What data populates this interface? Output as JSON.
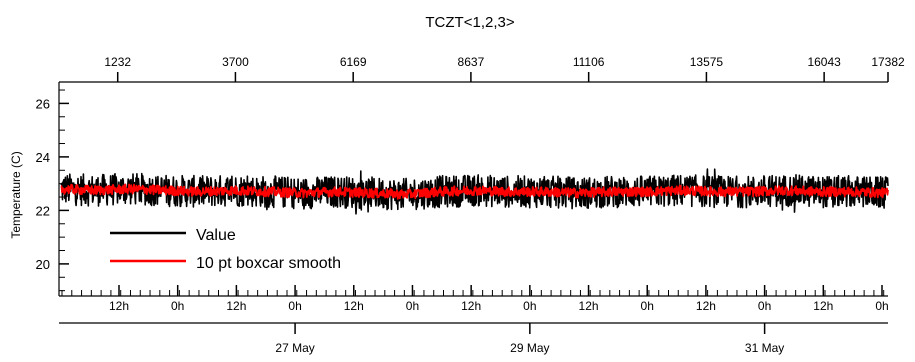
{
  "chart_data": {
    "type": "line",
    "title": "TCZT<1,2,3>",
    "ylabel": "Temperature (C)",
    "ylim": [
      18.8,
      26.8
    ],
    "y_ticks": [
      "20",
      "22",
      "24",
      "26"
    ],
    "top_axis": {
      "range": [
        1,
        17382
      ],
      "tick_labels": [
        "1232",
        "3700",
        "6169",
        "8637",
        "11106",
        "13575",
        "16043",
        "17382"
      ]
    },
    "bottom_axis": {
      "hour_labels": [
        "12h",
        "0h",
        "12h",
        "0h",
        "12h",
        "0h",
        "12h",
        "0h",
        "12h",
        "0h",
        "12h",
        "0h",
        "12h",
        "0h"
      ],
      "date_labels": [
        "27 May",
        "29 May",
        "31 May"
      ]
    },
    "legend_placement": "bottom-left",
    "grid": false,
    "series": [
      {
        "name": "Value",
        "color": "#000000",
        "mean_profile": [
          22.8,
          22.75,
          22.8,
          22.75,
          22.7,
          22.75,
          22.7,
          22.65,
          22.7,
          22.65,
          22.6,
          22.7,
          22.75,
          22.7,
          22.7,
          22.65,
          22.7,
          22.7,
          22.75,
          22.7,
          22.7,
          22.75,
          22.7,
          22.7,
          22.65
        ],
        "band_halfwidth": 0.6
      },
      {
        "name": "10 pt boxcar smooth",
        "color": "#ff0000",
        "mean_profile": [
          22.8,
          22.75,
          22.8,
          22.75,
          22.7,
          22.75,
          22.7,
          22.65,
          22.7,
          22.65,
          22.6,
          22.7,
          22.75,
          22.7,
          22.7,
          22.65,
          22.7,
          22.7,
          22.75,
          22.7,
          22.7,
          22.75,
          22.7,
          22.7,
          22.65
        ],
        "band_halfwidth": 0.18
      }
    ]
  }
}
